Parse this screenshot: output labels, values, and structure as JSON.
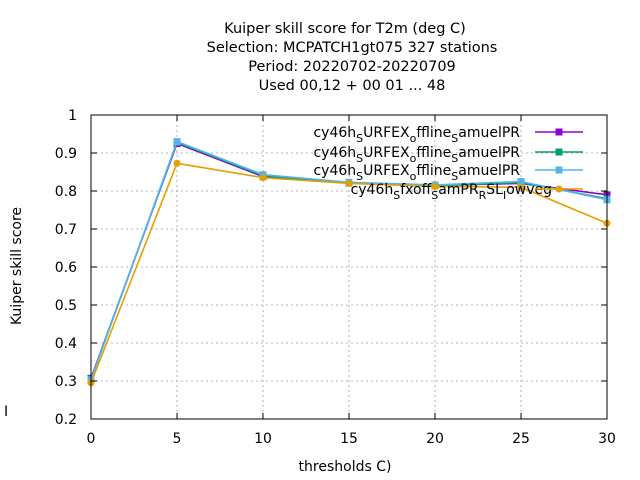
{
  "chart_data": {
    "type": "line",
    "title_lines": [
      "Kuiper skill score  for T2m (deg C)",
      "Selection: MCPATCH1gt075    327 stations",
      "Period: 20220702-20220709",
      "Used  00,12  + 00 01 ... 48"
    ],
    "xlabel": "thresholds C)",
    "ylabel": "Kuiper skill score",
    "side_mark": "I",
    "xlim": [
      0,
      30
    ],
    "ylim": [
      0.2,
      1.0
    ],
    "xticks": [
      0,
      5,
      10,
      15,
      20,
      25,
      30
    ],
    "yticks": [
      0.2,
      0.3,
      0.4,
      0.5,
      0.6,
      0.7,
      0.8,
      0.9,
      1.0
    ],
    "ytick_labels": [
      "0.2",
      "0.3",
      "0.4",
      "0.5",
      "0.6",
      "0.7",
      "0.8",
      "0.9",
      "1"
    ],
    "grid": true,
    "legend_position": "top-right",
    "x": [
      0,
      5,
      10,
      15,
      20,
      25,
      30
    ],
    "series": [
      {
        "legend_text": {
          "main": "cy46h",
          "sub1": "S",
          "mid1": "URFEX",
          "sub2": "o",
          "mid2": "ffline",
          "sub3": "S",
          "tail": "amuelPR"
        },
        "color": "#9400d3",
        "marker": "square",
        "values": [
          0.307,
          0.925,
          0.838,
          0.822,
          0.815,
          0.82,
          0.79
        ]
      },
      {
        "legend_text": {
          "main": "cy46h",
          "sub1": "S",
          "mid1": "URFEX",
          "sub2": "o",
          "mid2": "ffline",
          "sub3": "S",
          "tail": "amuelPR"
        },
        "color": "#009e73",
        "marker": "square",
        "values": [
          0.305,
          0.928,
          0.84,
          0.821,
          0.814,
          0.822,
          0.78
        ]
      },
      {
        "legend_text": {
          "main": "cy46h",
          "sub1": "S",
          "mid1": "URFEX",
          "sub2": "o",
          "mid2": "ffline",
          "sub3": "S",
          "tail": "amuelPR"
        },
        "color": "#56b4e9",
        "marker": "square",
        "values": [
          0.303,
          0.93,
          0.843,
          0.823,
          0.816,
          0.825,
          0.777
        ]
      },
      {
        "legend_text": {
          "main": "cy46h",
          "sub1": "S",
          "mid1": "fxoff",
          "sub2": "S",
          "mid2": "amPR",
          "sub3": "R",
          "tail": "SL",
          "sub4": "I",
          "tail2": "owveg"
        },
        "color": "#e69f00",
        "marker": "circle",
        "values": [
          0.295,
          0.873,
          0.835,
          0.82,
          0.812,
          0.81,
          0.715
        ]
      }
    ]
  }
}
